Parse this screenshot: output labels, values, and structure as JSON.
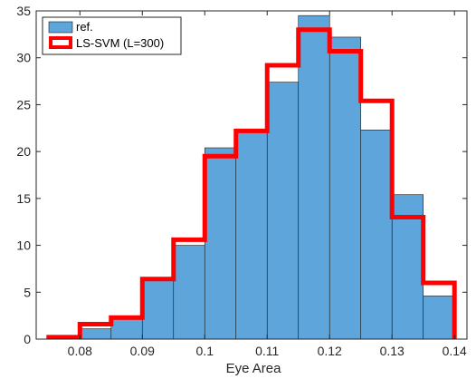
{
  "chart_data": {
    "type": "bar",
    "subtype": "histogram-with-step-overlay",
    "xlabel": "Eye Area",
    "ylabel": "",
    "xlim": [
      0.073,
      0.142
    ],
    "ylim": [
      0,
      35
    ],
    "xticks": [
      0.08,
      0.09,
      0.1,
      0.11,
      0.12,
      0.13,
      0.14
    ],
    "xtick_labels": [
      "0.08",
      "0.09",
      "0.1",
      "0.11",
      "0.12",
      "0.13",
      "0.14"
    ],
    "yticks": [
      0,
      5,
      10,
      15,
      20,
      25,
      30,
      35
    ],
    "ytick_labels": [
      "0",
      "5",
      "10",
      "15",
      "20",
      "25",
      "30",
      "35"
    ],
    "bin_edges": [
      0.075,
      0.08,
      0.085,
      0.09,
      0.095,
      0.1,
      0.105,
      0.11,
      0.115,
      0.12,
      0.125,
      0.13,
      0.135,
      0.14
    ],
    "series": [
      {
        "name": "ref.",
        "style": "bars",
        "color": "#5DA5DA",
        "values": [
          0,
          1.1,
          2.1,
          6.3,
          10.0,
          20.4,
          22.1,
          27.4,
          34.5,
          32.2,
          22.3,
          15.4,
          4.6
        ]
      },
      {
        "name": "LS-SVM (L=300)",
        "style": "step",
        "color": "#FF0000",
        "values": [
          0.2,
          1.6,
          2.3,
          6.4,
          10.6,
          19.5,
          22.2,
          29.2,
          33.0,
          30.7,
          25.4,
          13.0,
          6.0
        ]
      }
    ],
    "legend": {
      "position": "top-left",
      "entries": [
        "ref.",
        "LS-SVM (L=300)"
      ]
    },
    "grid": false,
    "colors": {
      "bar_fill": "#5DA5DA",
      "bar_edge": "#1a1a1a",
      "step_line": "#FF0000",
      "axis": "#262626"
    }
  }
}
